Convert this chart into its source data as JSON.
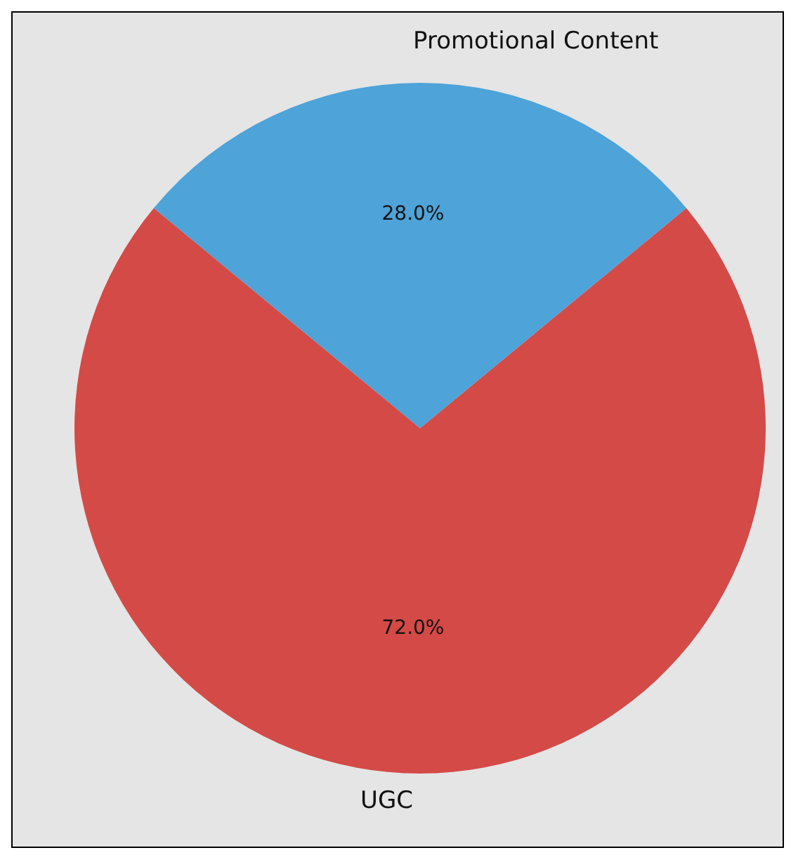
{
  "chart_data": {
    "type": "pie",
    "categories": [
      "UGC",
      "Promotional Content"
    ],
    "values": [
      72,
      28
    ],
    "colors": [
      "#d44a46",
      "#4ea3d8"
    ],
    "value_labels": [
      "72.0%",
      "28.0%"
    ]
  }
}
